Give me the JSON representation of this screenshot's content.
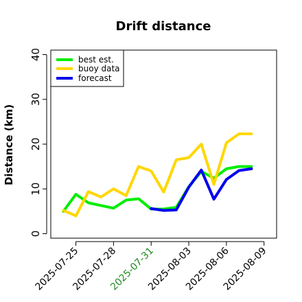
{
  "chart_data": {
    "type": "line",
    "title": "Drift distance",
    "xlabel": "",
    "ylabel": "Distance (km)",
    "x": [
      "2025-07-24",
      "2025-07-25",
      "2025-07-26",
      "2025-07-27",
      "2025-07-28",
      "2025-07-29",
      "2025-07-30",
      "2025-07-31",
      "2025-08-01",
      "2025-08-02",
      "2025-08-03",
      "2025-08-04",
      "2025-08-05",
      "2025-08-06",
      "2025-08-07",
      "2025-08-08"
    ],
    "xticks": [
      {
        "label": "2025-07-25",
        "color": "#000000"
      },
      {
        "label": "2025-07-28",
        "color": "#000000"
      },
      {
        "label": "2025-07-31",
        "color": "#228B22"
      },
      {
        "label": "2025-08-03",
        "color": "#000000"
      },
      {
        "label": "2025-08-06",
        "color": "#000000"
      },
      {
        "label": "2025-08-09",
        "color": "#000000"
      }
    ],
    "xlim": [
      "2025-07-23",
      "2025-08-10"
    ],
    "ylim": [
      -1,
      41
    ],
    "yticks": [
      0,
      10,
      20,
      30,
      40
    ],
    "grid": false,
    "legend_position": "top-left",
    "series": [
      {
        "name": "best est.",
        "color": "#00ee00",
        "x": [
          "2025-07-24",
          "2025-07-25",
          "2025-07-26",
          "2025-07-27",
          "2025-07-28",
          "2025-07-29",
          "2025-07-30",
          "2025-07-31",
          "2025-08-01",
          "2025-08-02",
          "2025-08-03",
          "2025-08-04",
          "2025-08-05",
          "2025-08-06",
          "2025-08-07",
          "2025-08-08"
        ],
        "values": [
          5.0,
          8.8,
          6.9,
          6.3,
          5.7,
          7.5,
          7.8,
          5.5,
          5.5,
          5.9,
          10.5,
          13.9,
          12.4,
          14.5,
          15.0,
          15.0
        ]
      },
      {
        "name": "buoy data",
        "color": "#ffd700",
        "x": [
          "2025-07-24",
          "2025-07-25",
          "2025-07-26",
          "2025-07-27",
          "2025-07-28",
          "2025-07-29",
          "2025-07-30",
          "2025-07-31",
          "2025-08-01",
          "2025-08-02",
          "2025-08-03",
          "2025-08-04",
          "2025-08-05",
          "2025-08-06",
          "2025-08-07",
          "2025-08-08"
        ],
        "values": [
          5.2,
          4.0,
          9.4,
          8.2,
          10.0,
          8.5,
          15.0,
          14.0,
          9.3,
          16.5,
          17.0,
          20.0,
          11.0,
          20.3,
          22.3,
          22.3
        ]
      },
      {
        "name": "forecast",
        "color": "#0000ee",
        "x": [
          "2025-07-31",
          "2025-08-01",
          "2025-08-02",
          "2025-08-03",
          "2025-08-04",
          "2025-08-05",
          "2025-08-06",
          "2025-08-07",
          "2025-08-08"
        ],
        "values": [
          5.6,
          5.2,
          5.3,
          10.4,
          14.2,
          7.7,
          12.1,
          14.1,
          14.5
        ]
      }
    ]
  }
}
